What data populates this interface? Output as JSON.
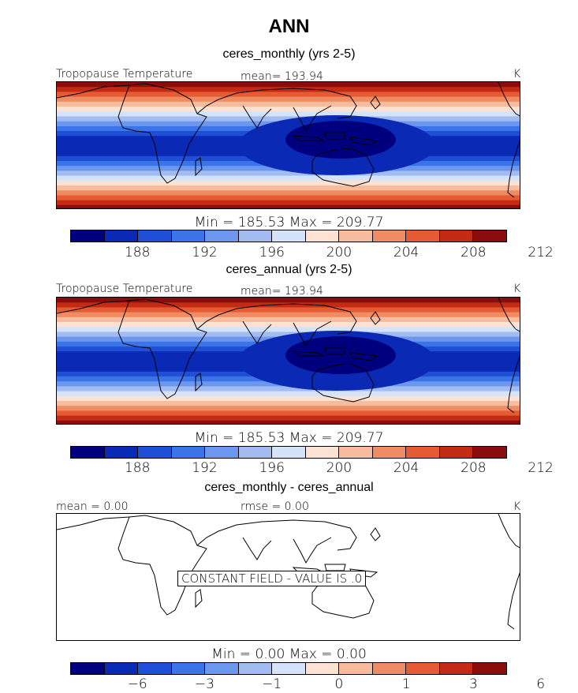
{
  "title": "ANN",
  "colors": [
    "#00007f",
    "#0a2ab5",
    "#1f4fd6",
    "#3a74e8",
    "#6d97ee",
    "#a2bcf2",
    "#d4e3f9",
    "#fbe2d2",
    "#f7bc9d",
    "#f08c63",
    "#e55b33",
    "#c42b14",
    "#8a0c0c"
  ],
  "panels": [
    {
      "subtitle": "ceres_monthly (yrs 2-5)",
      "field_label": "Tropopause Temperature",
      "mean_label": "mean= 193.94",
      "units": "K",
      "minmax": "Min = 185.53 Max = 209.77",
      "ticks": [
        "188",
        "192",
        "196",
        "200",
        "204",
        "208",
        "212"
      ]
    },
    {
      "subtitle": "ceres_annual (yrs 2-5)",
      "field_label": "Tropopause Temperature",
      "mean_label": "mean= 193.94",
      "units": "K",
      "minmax": "Min = 185.53 Max = 209.77",
      "ticks": [
        "188",
        "192",
        "196",
        "200",
        "204",
        "208",
        "212"
      ]
    },
    {
      "subtitle": "ceres_monthly - ceres_annual",
      "mean_label": "mean =    0.00",
      "rmse_label": "rmse =    0.00",
      "units": "K",
      "constant_note": "CONSTANT FIELD - VALUE IS .0",
      "minmax": "Min =    0.00 Max =    0.00",
      "ticks": [
        "−6",
        "−3",
        "−1",
        "0",
        "1",
        "3",
        "6"
      ]
    }
  ]
}
